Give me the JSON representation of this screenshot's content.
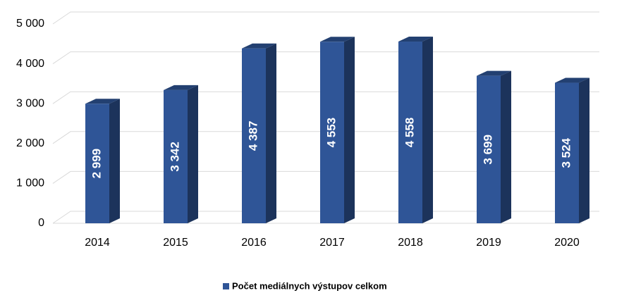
{
  "chart_data": {
    "type": "bar3d",
    "categories": [
      "2014",
      "2015",
      "2016",
      "2017",
      "2018",
      "2019",
      "2020"
    ],
    "series": [
      {
        "name": "Počet mediálnych výstupov celkom",
        "color": "#2f5597",
        "values": [
          2999,
          3342,
          4387,
          4553,
          4558,
          3699,
          3524
        ],
        "value_labels": [
          "2 999",
          "3 342",
          "4 387",
          "4 553",
          "4 558",
          "3 699",
          "3 524"
        ]
      }
    ],
    "ylim": [
      0,
      5000
    ],
    "yticks": [
      0,
      {
        "value": 1000,
        "label": "1 000"
      },
      {
        "value": 2000,
        "label": "2 000"
      },
      {
        "value": 3000,
        "label": "3 000"
      },
      {
        "value": 4000,
        "label": "4 000"
      },
      {
        "value": 5000,
        "label": "5 000"
      }
    ],
    "grid": true,
    "legend": "bottom"
  }
}
